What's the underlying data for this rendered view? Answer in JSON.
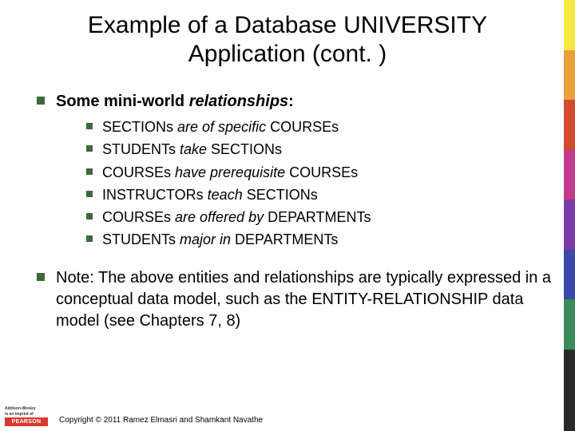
{
  "title": "Example of a Database UNIVERSITY Application (cont. )",
  "heading": {
    "prefix": "Some mini-world ",
    "italic": "relationships",
    "suffix": ":"
  },
  "items": [
    {
      "a": "SECTIONs ",
      "verb": "are of specific",
      "b": " COURSEs"
    },
    {
      "a": "STUDENTs ",
      "verb": "take",
      "b": " SECTIONs"
    },
    {
      "a": "COURSEs ",
      "verb": "have  prerequisite",
      "b": " COURSEs"
    },
    {
      "a": "INSTRUCTORs ",
      "verb": "teach",
      "b": "  SECTIONs"
    },
    {
      "a": "COURSEs ",
      "verb": "are offered by",
      "b": "  DEPARTMENTs"
    },
    {
      "a": "STUDENTs ",
      "verb": "major in",
      "b": "  DEPARTMENTs"
    }
  ],
  "note": "Note: The above entities and relationships are typically expressed in a conceptual data model, such as the ENTITY-RELATIONSHIP data model (see Chapters 7, 8)",
  "publisher": {
    "line1": "Addison-Wesley",
    "line2": "is an imprint of",
    "brand": "PEARSON"
  },
  "copyright": "Copyright © 2011 Ramez Elmasri and Shamkant Navathe",
  "colors": {
    "bullet": "#3a6a3a",
    "strip": [
      "#f4e842",
      "#e8a23a",
      "#d14a2e",
      "#c43a8a",
      "#7a3aa8",
      "#3a4aa8",
      "#3a8a5a",
      "#2a2a2a"
    ],
    "pearson_bg": "#d93a2e"
  }
}
